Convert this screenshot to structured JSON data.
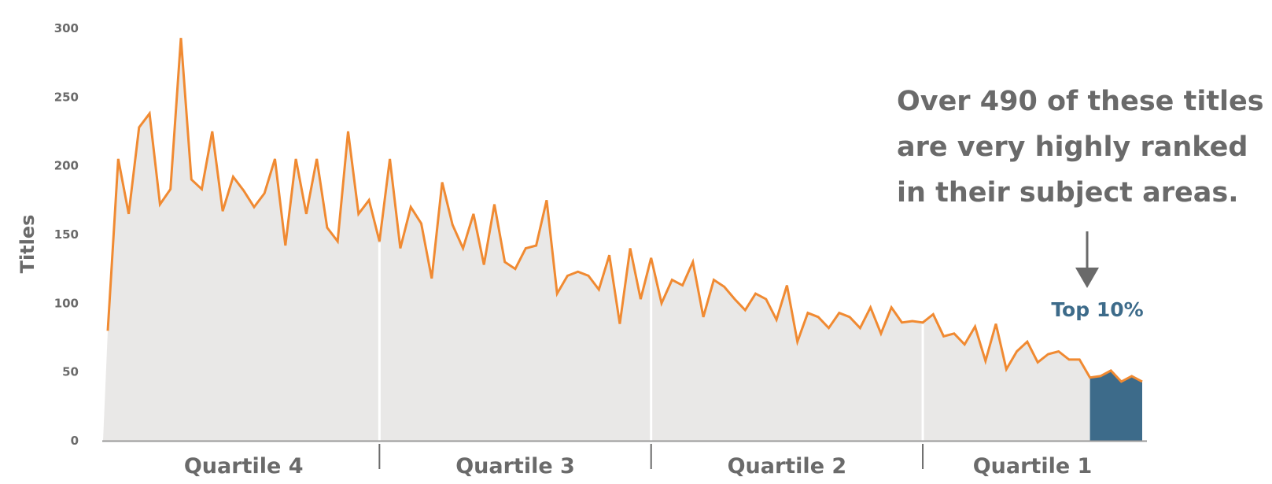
{
  "chart_data": {
    "type": "area",
    "ylabel": "Titles",
    "xlabel": "",
    "ylim": [
      0,
      300
    ],
    "y_ticks": [
      0,
      50,
      100,
      150,
      200,
      250,
      300
    ],
    "grid": false,
    "colors": {
      "line": "#f08a32",
      "area": "#e9e8e7",
      "highlight": "#3d6b8a",
      "text": "#6a6a6a",
      "axis": "#9a9a9a"
    },
    "quartiles": [
      {
        "label": "Quartile 4",
        "start": 0,
        "end": 26
      },
      {
        "label": "Quartile 3",
        "start": 26,
        "end": 52
      },
      {
        "label": "Quartile 2",
        "start": 52,
        "end": 78
      },
      {
        "label": "Quartile 1",
        "start": 78,
        "end": 104
      }
    ],
    "highlight": {
      "label": "Top 10%",
      "start_index": 94
    },
    "annotation": {
      "lines": [
        "Over 490 of these titles",
        "are very highly ranked",
        "in their subject areas."
      ]
    },
    "series": [
      {
        "values": [
          80,
          205,
          165,
          228,
          238,
          172,
          183,
          293,
          190,
          183,
          225,
          167,
          192,
          182,
          170,
          180,
          205,
          142,
          205,
          165,
          205,
          155,
          145,
          225,
          165,
          175,
          145,
          205,
          140,
          170,
          158,
          118,
          188,
          157,
          140,
          165,
          128,
          172,
          130,
          125,
          140,
          142,
          175,
          107,
          120,
          123,
          120,
          110,
          135,
          85,
          140,
          103,
          133,
          100,
          117,
          113,
          130,
          90,
          117,
          112,
          103,
          95,
          107,
          103,
          88,
          113,
          72,
          93,
          90,
          82,
          93,
          90,
          82,
          97,
          78,
          97,
          86,
          87,
          86,
          92,
          76,
          78,
          70,
          83,
          58,
          85,
          52,
          65,
          72,
          57,
          63,
          65,
          59,
          59,
          46,
          47,
          51,
          43,
          47,
          43
        ]
      }
    ]
  }
}
